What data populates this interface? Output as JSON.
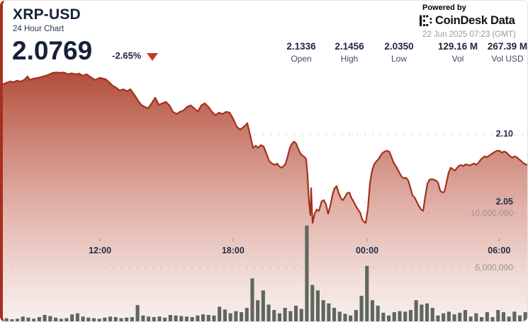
{
  "header": {
    "symbol": "XRP-USD",
    "subtitle": "24 Hour Chart",
    "price": "2.0769",
    "change": "-2.65%",
    "change_direction": "down",
    "stats": [
      {
        "value": "2.1336",
        "label": "Open"
      },
      {
        "value": "2.1456",
        "label": "High"
      },
      {
        "value": "2.0350",
        "label": "Low"
      },
      {
        "value": "129.16 M",
        "label": "Vol"
      },
      {
        "value": "267.39 M",
        "label": "Vol USD"
      }
    ]
  },
  "branding": {
    "powered_by": "Powered by",
    "logo_text": "CoinDesk Data",
    "timestamp": "22 Jun 2025 07:23 (GMT)"
  },
  "colors": {
    "line_red": "#a5301f",
    "triangle_red": "#c23a2b",
    "area_top": "#b24c3a",
    "area_bottom": "#f8efed",
    "volume_bar": "#5f675d",
    "grid": "#8f8f8f",
    "text_dark": "#17203a",
    "text_gray": "#9a9a9a"
  },
  "chart_data": {
    "type": "area",
    "title": "XRP-USD 24 Hour Chart",
    "open": 2.1336,
    "high": 2.1456,
    "low": 2.035,
    "close": 2.0769,
    "change_pct": -2.65,
    "volume": "129.16 M",
    "volume_usd": "267.39 M",
    "grid": "dotted",
    "price_axis_labels": [
      {
        "text": "2.10",
        "price": 2.1
      },
      {
        "text": "2.05",
        "price": 2.05
      }
    ],
    "volume_axis_labels": [
      {
        "text": "10,000,000",
        "millions": 10
      },
      {
        "text": "5,000,000",
        "millions": 5
      }
    ],
    "x_axis_labels": [
      {
        "text": "12:00",
        "f": 0.184
      },
      {
        "text": "18:00",
        "f": 0.436
      },
      {
        "text": "00:00",
        "f": 0.69
      },
      {
        "text": "06:00",
        "f": 0.94
      }
    ],
    "price_series": [
      [
        0,
        2.137
      ],
      [
        0.0067,
        2.138
      ],
      [
        0.0134,
        2.139
      ],
      [
        0.0201,
        2.1385
      ],
      [
        0.0268,
        2.1396
      ],
      [
        0.0336,
        2.139
      ],
      [
        0.0403,
        2.1401
      ],
      [
        0.047,
        2.1427
      ],
      [
        0.051,
        2.1401
      ],
      [
        0.0577,
        2.1411
      ],
      [
        0.0671,
        2.1417
      ],
      [
        0.0765,
        2.1427
      ],
      [
        0.0859,
        2.1438
      ],
      [
        0.094,
        2.1453
      ],
      [
        0.102,
        2.1456
      ],
      [
        0.1101,
        2.1453
      ],
      [
        0.1154,
        2.1456
      ],
      [
        0.1235,
        2.1443
      ],
      [
        0.1302,
        2.145
      ],
      [
        0.1383,
        2.1443
      ],
      [
        0.145,
        2.1448
      ],
      [
        0.1517,
        2.1432
      ],
      [
        0.1584,
        2.1443
      ],
      [
        0.1664,
        2.1422
      ],
      [
        0.1745,
        2.1401
      ],
      [
        0.1839,
        2.1417
      ],
      [
        0.1946,
        2.1406
      ],
      [
        0.2013,
        2.1385
      ],
      [
        0.2081,
        2.1359
      ],
      [
        0.2148,
        2.1344
      ],
      [
        0.2215,
        2.1323
      ],
      [
        0.2282,
        2.1333
      ],
      [
        0.2349,
        2.1318
      ],
      [
        0.2416,
        2.1333
      ],
      [
        0.2483,
        2.1297
      ],
      [
        0.255,
        2.1255
      ],
      [
        0.2617,
        2.1219
      ],
      [
        0.2685,
        2.1203
      ],
      [
        0.2752,
        2.1193
      ],
      [
        0.2819,
        2.1229
      ],
      [
        0.2886,
        2.1271
      ],
      [
        0.2953,
        2.1219
      ],
      [
        0.302,
        2.1229
      ],
      [
        0.3087,
        2.124
      ],
      [
        0.3154,
        2.1214
      ],
      [
        0.3221,
        2.1167
      ],
      [
        0.3289,
        2.1151
      ],
      [
        0.3356,
        2.1167
      ],
      [
        0.3423,
        2.1177
      ],
      [
        0.349,
        2.1203
      ],
      [
        0.3557,
        2.1214
      ],
      [
        0.3624,
        2.1193
      ],
      [
        0.3691,
        2.1167
      ],
      [
        0.3758,
        2.1214
      ],
      [
        0.3826,
        2.1229
      ],
      [
        0.3893,
        2.1203
      ],
      [
        0.396,
        2.1167
      ],
      [
        0.4027,
        2.1141
      ],
      [
        0.4094,
        2.1161
      ],
      [
        0.4161,
        2.1151
      ],
      [
        0.4228,
        2.1167
      ],
      [
        0.4295,
        2.1161
      ],
      [
        0.4362,
        2.1115
      ],
      [
        0.443,
        2.1057
      ],
      [
        0.4497,
        2.1036
      ],
      [
        0.4564,
        2.1057
      ],
      [
        0.4631,
        2.1083
      ],
      [
        0.4685,
        2.0995
      ],
      [
        0.4738,
        2.0901
      ],
      [
        0.4792,
        2.0917
      ],
      [
        0.4832,
        2.0901
      ],
      [
        0.4886,
        2.0922
      ],
      [
        0.4939,
        2.0911
      ],
      [
        0.4993,
        2.0859
      ],
      [
        0.5047,
        2.0802
      ],
      [
        0.5101,
        2.0786
      ],
      [
        0.5154,
        2.0776
      ],
      [
        0.5195,
        2.0786
      ],
      [
        0.5235,
        2.0766
      ],
      [
        0.5275,
        2.0755
      ],
      [
        0.5315,
        2.0766
      ],
      [
        0.5356,
        2.0786
      ],
      [
        0.5396,
        2.0839
      ],
      [
        0.5436,
        2.0901
      ],
      [
        0.5477,
        2.0932
      ],
      [
        0.5517,
        2.0948
      ],
      [
        0.5557,
        2.0932
      ],
      [
        0.5597,
        2.0891
      ],
      [
        0.5638,
        2.0859
      ],
      [
        0.5678,
        2.0844
      ],
      [
        0.5718,
        2.0833
      ],
      [
        0.5745,
        2.0818
      ],
      [
        0.5772,
        2.0693
      ],
      [
        0.5799,
        2.05
      ],
      [
        0.5826,
        2.0406
      ],
      [
        0.5839,
        2.0604
      ],
      [
        0.5866,
        2.0349
      ],
      [
        0.5906,
        2.0417
      ],
      [
        0.5946,
        2.0448
      ],
      [
        0.5987,
        2.0438
      ],
      [
        0.604,
        2.051
      ],
      [
        0.6081,
        2.0516
      ],
      [
        0.6121,
        2.0484
      ],
      [
        0.6161,
        2.0417
      ],
      [
        0.6201,
        2.0474
      ],
      [
        0.6242,
        2.0552
      ],
      [
        0.6282,
        2.0604
      ],
      [
        0.6322,
        2.062
      ],
      [
        0.6362,
        2.0568
      ],
      [
        0.6403,
        2.0531
      ],
      [
        0.6443,
        2.0516
      ],
      [
        0.6483,
        2.0542
      ],
      [
        0.6523,
        2.0568
      ],
      [
        0.6564,
        2.0573
      ],
      [
        0.6604,
        2.0531
      ],
      [
        0.6644,
        2.0505
      ],
      [
        0.6685,
        2.0474
      ],
      [
        0.6725,
        2.0448
      ],
      [
        0.6765,
        2.0427
      ],
      [
        0.6805,
        2.0375
      ],
      [
        0.6846,
        2.0354
      ],
      [
        0.6872,
        2.0349
      ],
      [
        0.6913,
        2.0448
      ],
      [
        0.6953,
        2.0641
      ],
      [
        0.6993,
        2.0734
      ],
      [
        0.7034,
        2.0781
      ],
      [
        0.7074,
        2.0802
      ],
      [
        0.7114,
        2.0818
      ],
      [
        0.7154,
        2.0844
      ],
      [
        0.7195,
        2.0865
      ],
      [
        0.7235,
        2.0875
      ],
      [
        0.7275,
        2.088
      ],
      [
        0.7315,
        2.0875
      ],
      [
        0.7356,
        2.0839
      ],
      [
        0.7396,
        2.0797
      ],
      [
        0.7436,
        2.0771
      ],
      [
        0.7477,
        2.0745
      ],
      [
        0.7517,
        2.0714
      ],
      [
        0.7557,
        2.0688
      ],
      [
        0.7597,
        2.0677
      ],
      [
        0.7638,
        2.0682
      ],
      [
        0.7678,
        2.0661
      ],
      [
        0.7718,
        2.0609
      ],
      [
        0.7758,
        2.0552
      ],
      [
        0.7799,
        2.0536
      ],
      [
        0.7839,
        2.0505
      ],
      [
        0.7879,
        2.0474
      ],
      [
        0.7919,
        2.0448
      ],
      [
        0.796,
        2.0438
      ],
      [
        0.8,
        2.0542
      ],
      [
        0.804,
        2.0635
      ],
      [
        0.8081,
        2.0667
      ],
      [
        0.8121,
        2.0672
      ],
      [
        0.8161,
        2.0667
      ],
      [
        0.8201,
        2.0661
      ],
      [
        0.8242,
        2.0646
      ],
      [
        0.8282,
        2.0589
      ],
      [
        0.8322,
        2.0573
      ],
      [
        0.8362,
        2.0578
      ],
      [
        0.8403,
        2.0646
      ],
      [
        0.8443,
        2.0719
      ],
      [
        0.8483,
        2.0755
      ],
      [
        0.8523,
        2.0745
      ],
      [
        0.8564,
        2.0734
      ],
      [
        0.8604,
        2.0755
      ],
      [
        0.8644,
        2.0771
      ],
      [
        0.8685,
        2.0776
      ],
      [
        0.8725,
        2.0766
      ],
      [
        0.8765,
        2.0781
      ],
      [
        0.8805,
        2.0776
      ],
      [
        0.8846,
        2.0771
      ],
      [
        0.8886,
        2.0781
      ],
      [
        0.8926,
        2.0786
      ],
      [
        0.8966,
        2.0776
      ],
      [
        0.9007,
        2.0791
      ],
      [
        0.9047,
        2.0813
      ],
      [
        0.9087,
        2.0828
      ],
      [
        0.9128,
        2.0839
      ],
      [
        0.9168,
        2.0833
      ],
      [
        0.9208,
        2.0844
      ],
      [
        0.9248,
        2.0854
      ],
      [
        0.9289,
        2.0865
      ],
      [
        0.9329,
        2.0875
      ],
      [
        0.9369,
        2.088
      ],
      [
        0.9409,
        2.088
      ],
      [
        0.945,
        2.0865
      ],
      [
        0.949,
        2.0875
      ],
      [
        0.953,
        2.087
      ],
      [
        0.957,
        2.0854
      ],
      [
        0.9611,
        2.0839
      ],
      [
        0.9651,
        2.0828
      ],
      [
        0.9691,
        2.0839
      ],
      [
        0.9732,
        2.0833
      ],
      [
        0.9772,
        2.0818
      ],
      [
        0.9812,
        2.0807
      ],
      [
        0.9852,
        2.0791
      ],
      [
        0.9893,
        2.0781
      ],
      [
        0.9946,
        2.0776
      ],
      [
        1,
        2.0766
      ]
    ],
    "volume_series_millions": [
      0.35,
      0.25,
      0.3,
      0.5,
      0.4,
      0.3,
      0.45,
      0.65,
      0.55,
      0.4,
      0.3,
      0.35,
      0.7,
      0.8,
      0.5,
      0.4,
      0.35,
      0.3,
      0.4,
      0.5,
      0.45,
      0.35,
      0.4,
      0.45,
      1.55,
      0.6,
      0.5,
      0.45,
      0.5,
      0.4,
      0.65,
      0.6,
      0.55,
      0.5,
      0.45,
      0.6,
      0.7,
      0.65,
      0.6,
      1.4,
      1.15,
      0.8,
      1.0,
      0.9,
      1.3,
      4.0,
      2.0,
      2.9,
      1.6,
      1.1,
      0.8,
      1.3,
      1.0,
      1.5,
      1.2,
      8.85,
      3.4,
      2.9,
      2.0,
      1.7,
      1.3,
      0.95,
      0.75,
      0.6,
      1.1,
      2.4,
      5.15,
      2.0,
      1.5,
      0.85,
      0.6,
      0.9,
      1.0,
      0.95,
      1.1,
      2.0,
      1.6,
      1.7,
      1.3,
      0.6,
      0.8,
      0.95,
      0.7,
      0.85,
      1.1,
      0.5,
      0.8,
      0.45,
      0.9,
      0.45,
      1.1,
      0.9,
      0.5,
      0.95,
      0.6,
      0.9
    ]
  }
}
